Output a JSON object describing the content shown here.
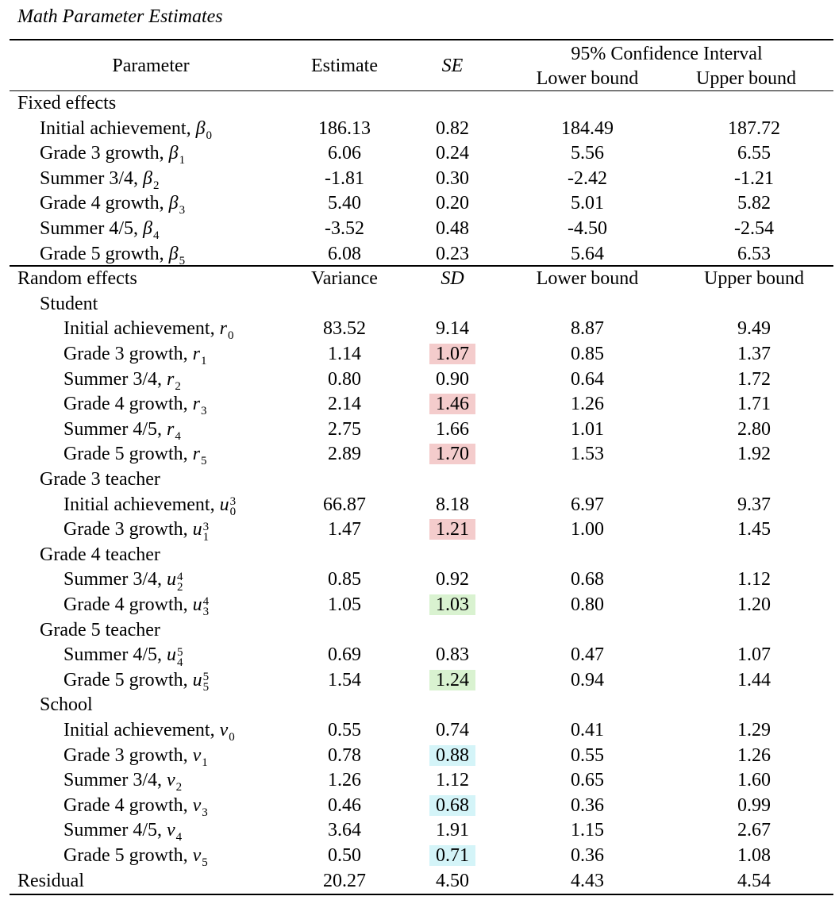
{
  "caption": "Math Parameter Estimates",
  "header": {
    "parameter": "Parameter",
    "estimate": "Estimate",
    "se": "SE",
    "ci": "95% Confidence Interval",
    "lower": "Lower bound",
    "upper": "Upper bound"
  },
  "fixed": {
    "section": "Fixed effects",
    "rows": [
      {
        "label": "Initial achievement, ",
        "sym": "β",
        "sub": "0",
        "sup": "",
        "est": "186.13",
        "se": "0.82",
        "lo": "184.49",
        "hi": "187.72"
      },
      {
        "label": "Grade 3 growth, ",
        "sym": "β",
        "sub": "1",
        "sup": "",
        "est": "6.06",
        "se": "0.24",
        "lo": "5.56",
        "hi": "6.55"
      },
      {
        "label": "Summer 3/4, ",
        "sym": "β",
        "sub": "2",
        "sup": "",
        "est": "-1.81",
        "se": "0.30",
        "lo": "-2.42",
        "hi": "-1.21"
      },
      {
        "label": "Grade 4 growth, ",
        "sym": "β",
        "sub": "3",
        "sup": "",
        "est": "5.40",
        "se": "0.20",
        "lo": "5.01",
        "hi": "5.82"
      },
      {
        "label": "Summer 4/5, ",
        "sym": "β",
        "sub": "4",
        "sup": "",
        "est": "-3.52",
        "se": "0.48",
        "lo": "-4.50",
        "hi": "-2.54"
      },
      {
        "label": "Grade 5 growth, ",
        "sym": "β",
        "sub": "5",
        "sup": "",
        "est": "6.08",
        "se": "0.23",
        "lo": "5.64",
        "hi": "6.53"
      }
    ]
  },
  "random": {
    "section": "Random effects",
    "variance": "Variance",
    "sd": "SD",
    "lower": "Lower bound",
    "upper": "Upper bound"
  },
  "groups": [
    {
      "name": "Student",
      "rows": [
        {
          "label": "Initial achievement, ",
          "sym": "r",
          "sub": "0",
          "sup": "",
          "est": "83.52",
          "se": "9.14",
          "lo": "8.87",
          "hi": "9.49",
          "hl": ""
        },
        {
          "label": "Grade 3 growth, ",
          "sym": "r",
          "sub": "1",
          "sup": "",
          "est": "1.14",
          "se": "1.07",
          "lo": "0.85",
          "hi": "1.37",
          "hl": "#f4cccc"
        },
        {
          "label": "Summer 3/4, ",
          "sym": "r",
          "sub": "2",
          "sup": "",
          "est": "0.80",
          "se": "0.90",
          "lo": "0.64",
          "hi": "1.72",
          "hl": ""
        },
        {
          "label": "Grade 4 growth, ",
          "sym": "r",
          "sub": "3",
          "sup": "",
          "est": "2.14",
          "se": "1.46",
          "lo": "1.26",
          "hi": "1.71",
          "hl": "#f4cccc"
        },
        {
          "label": "Summer 4/5, ",
          "sym": "r",
          "sub": "4",
          "sup": "",
          "est": "2.75",
          "se": "1.66",
          "lo": "1.01",
          "hi": "2.80",
          "hl": ""
        },
        {
          "label": "Grade 5 growth, ",
          "sym": "r",
          "sub": "5",
          "sup": "",
          "est": "2.89",
          "se": "1.70",
          "lo": "1.53",
          "hi": "1.92",
          "hl": "#f4cccc"
        }
      ]
    },
    {
      "name": "Grade 3 teacher",
      "rows": [
        {
          "label": "Initial achievement, ",
          "sym": "u",
          "sub": "0",
          "sup": "3",
          "est": "66.87",
          "se": "8.18",
          "lo": "6.97",
          "hi": "9.37",
          "hl": ""
        },
        {
          "label": "Grade 3 growth, ",
          "sym": "u",
          "sub": "1",
          "sup": "3",
          "est": "1.47",
          "se": "1.21",
          "lo": "1.00",
          "hi": "1.45",
          "hl": "#f4cccc"
        }
      ]
    },
    {
      "name": "Grade 4 teacher",
      "rows": [
        {
          "label": "Summer 3/4, ",
          "sym": "u",
          "sub": "2",
          "sup": "4",
          "est": "0.85",
          "se": "0.92",
          "lo": "0.68",
          "hi": "1.12",
          "hl": ""
        },
        {
          "label": "Grade 4 growth, ",
          "sym": "u",
          "sub": "3",
          "sup": "4",
          "est": "1.05",
          "se": "1.03",
          "lo": "0.80",
          "hi": "1.20",
          "hl": "#d9f2d0"
        }
      ]
    },
    {
      "name": "Grade 5 teacher",
      "rows": [
        {
          "label": "Summer 4/5, ",
          "sym": "u",
          "sub": "4",
          "sup": "5",
          "est": "0.69",
          "se": "0.83",
          "lo": "0.47",
          "hi": "1.07",
          "hl": ""
        },
        {
          "label": "Grade 5 growth, ",
          "sym": "u",
          "sub": "5",
          "sup": "5",
          "est": "1.54",
          "se": "1.24",
          "lo": "0.94",
          "hi": "1.44",
          "hl": "#d9f2d0"
        }
      ]
    },
    {
      "name": "School",
      "rows": [
        {
          "label": "Initial achievement, ",
          "sym": "v",
          "sub": "0",
          "sup": "",
          "est": "0.55",
          "se": "0.74",
          "lo": "0.41",
          "hi": "1.29",
          "hl": ""
        },
        {
          "label": "Grade 3 growth, ",
          "sym": "v",
          "sub": "1",
          "sup": "",
          "est": "0.78",
          "se": "0.88",
          "lo": "0.55",
          "hi": "1.26",
          "hl": "#d4f4f8"
        },
        {
          "label": "Summer 3/4, ",
          "sym": "v",
          "sub": "2",
          "sup": "",
          "est": "1.26",
          "se": "1.12",
          "lo": "0.65",
          "hi": "1.60",
          "hl": ""
        },
        {
          "label": "Grade 4 growth, ",
          "sym": "v",
          "sub": "3",
          "sup": "",
          "est": "0.46",
          "se": "0.68",
          "lo": "0.36",
          "hi": "0.99",
          "hl": "#d4f4f8"
        },
        {
          "label": "Summer 4/5, ",
          "sym": "v",
          "sub": "4",
          "sup": "",
          "est": "3.64",
          "se": "1.91",
          "lo": "1.15",
          "hi": "2.67",
          "hl": ""
        },
        {
          "label": "Grade 5 growth, ",
          "sym": "v",
          "sub": "5",
          "sup": "",
          "est": "0.50",
          "se": "0.71",
          "lo": "0.36",
          "hi": "1.08",
          "hl": "#d4f4f8"
        }
      ]
    }
  ],
  "residual": {
    "label": "Residual",
    "est": "20.27",
    "se": "4.50",
    "lo": "4.43",
    "hi": "4.54"
  }
}
